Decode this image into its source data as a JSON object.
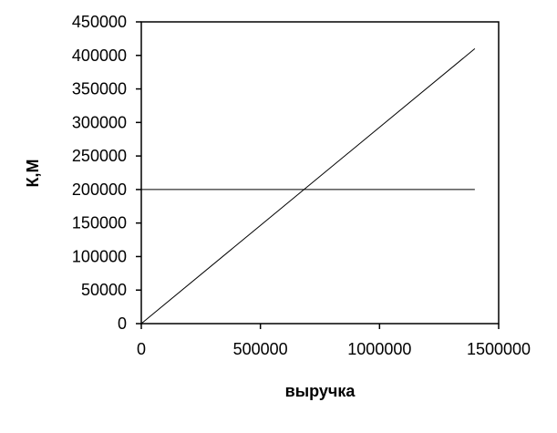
{
  "chart_data": {
    "type": "line",
    "title": "",
    "xlabel": "выручка",
    "ylabel": "К,М",
    "xlim": [
      0,
      1500000
    ],
    "ylim": [
      0,
      450000
    ],
    "x_ticks": [
      "0",
      "500000",
      "1000000",
      "1500000"
    ],
    "y_ticks": [
      "0",
      "50000",
      "100000",
      "150000",
      "200000",
      "250000",
      "300000",
      "350000",
      "400000",
      "450000"
    ],
    "grid": false,
    "legend": "none",
    "series": [
      {
        "x": [
          0,
          1400000
        ],
        "y": [
          0,
          410000
        ],
        "color": "#000000"
      },
      {
        "x": [
          0,
          1400000
        ],
        "y": [
          200000,
          200000
        ],
        "color": "#000000"
      }
    ]
  }
}
